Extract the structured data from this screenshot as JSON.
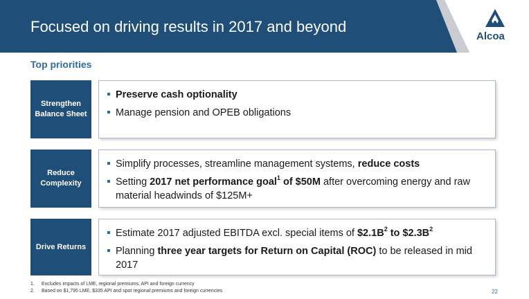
{
  "header": {
    "title": "Focused on driving results in 2017 and beyond",
    "logo_text": "Alcoa"
  },
  "section_title": "Top priorities",
  "priorities": [
    {
      "label": "Strengthen Balance Sheet",
      "bullets": [
        {
          "segments": [
            {
              "text": "Preserve cash optionality",
              "bold": true
            }
          ]
        },
        {
          "segments": [
            {
              "text": "Manage pension and OPEB obligations",
              "bold": false
            }
          ]
        }
      ]
    },
    {
      "label": "Reduce Complexity",
      "bullets": [
        {
          "segments": [
            {
              "text": "Simplify processes, streamline management systems, ",
              "bold": false
            },
            {
              "text": "reduce costs",
              "bold": true
            }
          ]
        },
        {
          "segments": [
            {
              "text": "Setting ",
              "bold": false
            },
            {
              "text": "2017 net performance goal",
              "bold": true
            },
            {
              "text": "1",
              "bold": true,
              "sup": true
            },
            {
              "text": " of $50M",
              "bold": true
            },
            {
              "text": " after overcoming energy and raw material headwinds of $125M+",
              "bold": false
            }
          ]
        }
      ]
    },
    {
      "label": "Drive Returns",
      "bullets": [
        {
          "segments": [
            {
              "text": "Estimate 2017 adjusted EBITDA excl. special items of ",
              "bold": false
            },
            {
              "text": "$2.1B",
              "bold": true
            },
            {
              "text": "2",
              "bold": true,
              "sup": true
            },
            {
              "text": " to $2.3B",
              "bold": true
            },
            {
              "text": "2",
              "bold": true,
              "sup": true
            }
          ]
        },
        {
          "segments": [
            {
              "text": "Planning ",
              "bold": false
            },
            {
              "text": "three year targets for Return on Capital (ROC)",
              "bold": true
            },
            {
              "text": " to be released in mid 2017",
              "bold": false
            }
          ]
        }
      ]
    }
  ],
  "footnotes": [
    {
      "num": "1.",
      "text": "Excludes impacts of LME, regional premiums, API and foreign currency"
    },
    {
      "num": "2.",
      "text": "Based on $1,795 LME, $335 API and spot regional premiums and foreign currencies"
    }
  ],
  "page_number": "22",
  "colors": {
    "navy": "#1f4e79",
    "accent_blue": "#2c6ca5",
    "logo_gray": "#c9ccd0"
  },
  "icons": {
    "logo": "alcoa-triangle-icon"
  }
}
